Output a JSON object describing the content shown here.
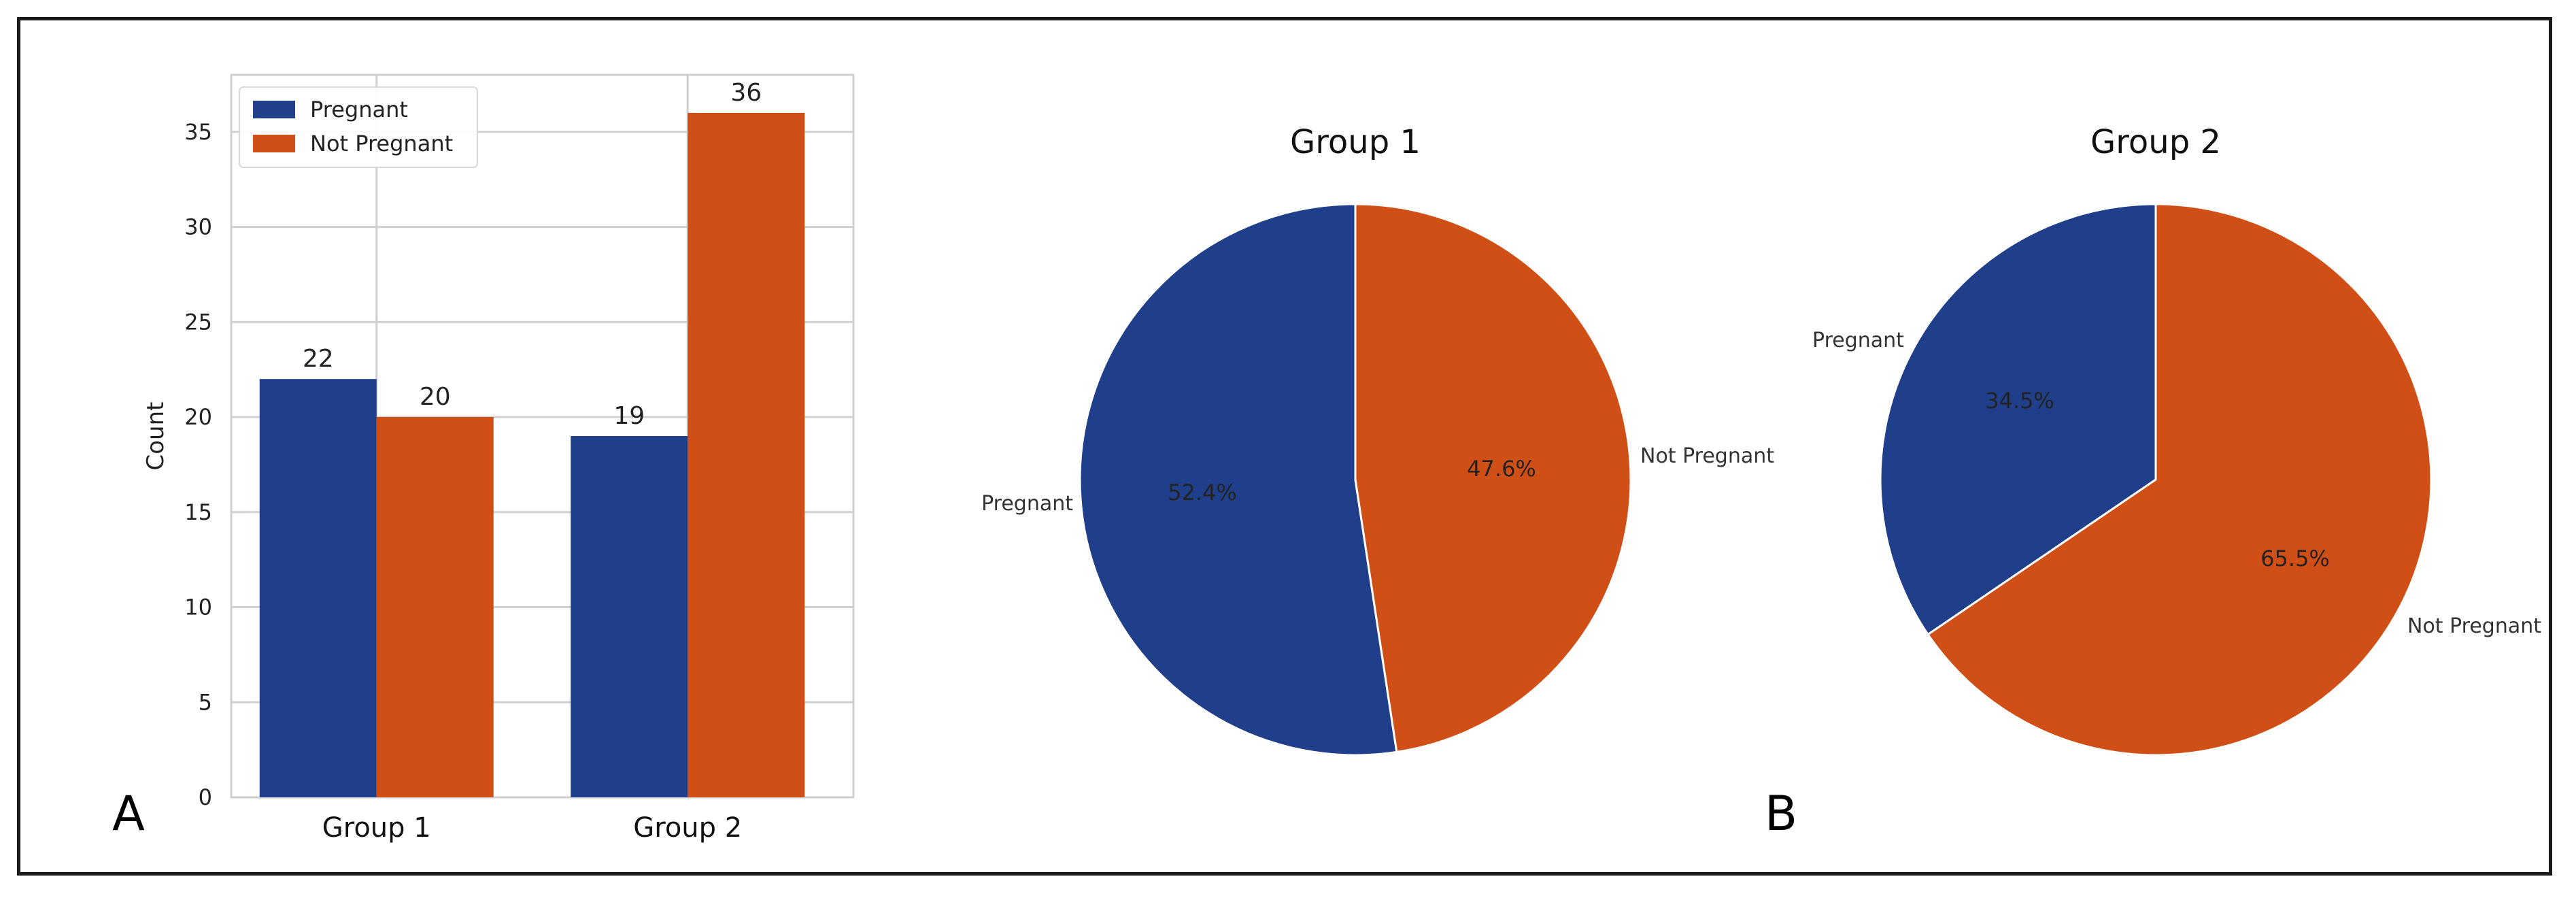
{
  "figure": {
    "panel_a_label": "A",
    "panel_b_label": "B"
  },
  "colors": {
    "pregnant": "#1f3f8b",
    "not_pregnant": "#d04f17",
    "grid": "#d0d0d0"
  },
  "chart_data": [
    {
      "type": "bar",
      "categories": [
        "Group 1",
        "Group 2"
      ],
      "series": [
        {
          "name": "Pregnant",
          "values": [
            22,
            19
          ]
        },
        {
          "name": "Not Pregnant",
          "values": [
            20,
            36
          ]
        }
      ],
      "data_labels": [
        [
          "22",
          "19"
        ],
        [
          "20",
          "36"
        ]
      ],
      "ylabel": "Count",
      "ylim": [
        0,
        38
      ],
      "yticks": [
        0,
        5,
        10,
        15,
        20,
        25,
        30,
        35
      ],
      "grid": true,
      "legend": "top-left"
    },
    {
      "type": "pie",
      "title": "Group 1",
      "labels": [
        "Pregnant",
        "Not Pregnant"
      ],
      "values": [
        52.4,
        47.6
      ],
      "pct_labels": [
        "52.4%",
        "47.6%"
      ]
    },
    {
      "type": "pie",
      "title": "Group 2",
      "labels": [
        "Pregnant",
        "Not Pregnant"
      ],
      "values": [
        34.5,
        65.5
      ],
      "pct_labels": [
        "34.5%",
        "65.5%"
      ]
    }
  ]
}
